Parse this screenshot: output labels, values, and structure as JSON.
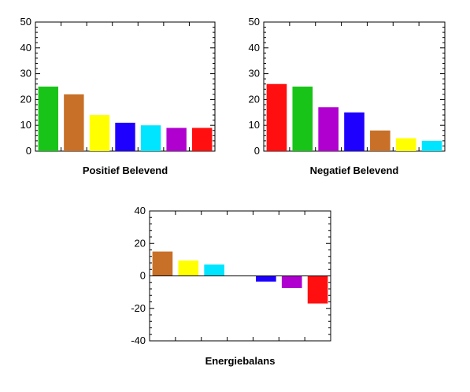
{
  "chart_data": [
    {
      "type": "bar",
      "title": "Positief Belevend",
      "ylim": [
        0,
        50
      ],
      "yticks": [
        "0",
        "10",
        "20",
        "30",
        "40",
        "50"
      ],
      "values": [
        25,
        22,
        14,
        11,
        10,
        9,
        9
      ],
      "colors": [
        "#19c419",
        "#c87028",
        "#ffff00",
        "#1e00ff",
        "#00e5ff",
        "#b000d0",
        "#ff0f0f"
      ]
    },
    {
      "type": "bar",
      "title": "Negatief Belevend",
      "ylim": [
        0,
        50
      ],
      "yticks": [
        "0",
        "10",
        "20",
        "30",
        "40",
        "50"
      ],
      "values": [
        26,
        25,
        17,
        15,
        8,
        5,
        4
      ],
      "colors": [
        "#ff0f0f",
        "#19c419",
        "#b000d0",
        "#1e00ff",
        "#c87028",
        "#ffff00",
        "#00e5ff"
      ]
    },
    {
      "type": "bar",
      "title": "Energiebalans",
      "ylim": [
        -40,
        40
      ],
      "yticks": [
        "-40",
        "-20",
        "0",
        "20",
        "40"
      ],
      "values": [
        15,
        9.5,
        7,
        0,
        -3.5,
        -7.5,
        -17
      ],
      "colors": [
        "#c87028",
        "#ffff00",
        "#00e5ff",
        "#19c419",
        "#1e00ff",
        "#b000d0",
        "#ff0f0f"
      ]
    }
  ]
}
